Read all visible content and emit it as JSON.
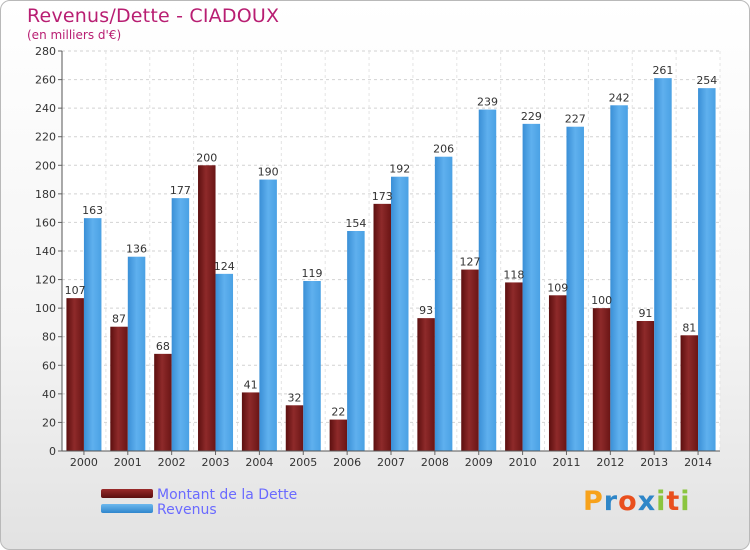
{
  "header": {
    "title": "Revenus/Dette - CIADOUX",
    "subtitle": "(en milliers d'€)"
  },
  "chart_data": {
    "type": "bar",
    "categories": [
      "2000",
      "2001",
      "2002",
      "2003",
      "2004",
      "2005",
      "2006",
      "2007",
      "2008",
      "2009",
      "2010",
      "2011",
      "2012",
      "2013",
      "2014"
    ],
    "series": [
      {
        "name": "Montant de la Dette",
        "color": "#7a1c1c",
        "values": [
          107,
          87,
          68,
          200,
          41,
          32,
          22,
          173,
          93,
          127,
          118,
          109,
          100,
          91,
          81
        ]
      },
      {
        "name": "Revenus",
        "color": "#4aa3e6",
        "values": [
          163,
          136,
          177,
          124,
          190,
          119,
          154,
          192,
          206,
          239,
          229,
          227,
          242,
          261,
          254
        ]
      }
    ],
    "ylim": [
      0,
      280
    ],
    "yticks": [
      0,
      20,
      40,
      60,
      80,
      100,
      120,
      140,
      160,
      180,
      200,
      220,
      240,
      260,
      280
    ],
    "grid": true,
    "title": "Revenus/Dette - CIADOUX",
    "ylabel": "(en milliers d'€)",
    "xlabel": ""
  },
  "legend": {
    "items": [
      {
        "label": "Montant de la Dette",
        "color": "#7a1c1c"
      },
      {
        "label": "Revenus",
        "color": "#4aa3e6"
      }
    ]
  },
  "logo": {
    "letters": [
      "P",
      "r",
      "o",
      "x",
      "i",
      "t",
      "i"
    ],
    "colors": [
      "#f7a21b",
      "#2e86c8",
      "#e94f1d",
      "#2e86c8",
      "#8bc53f",
      "#e94f1d",
      "#8bc53f"
    ]
  }
}
